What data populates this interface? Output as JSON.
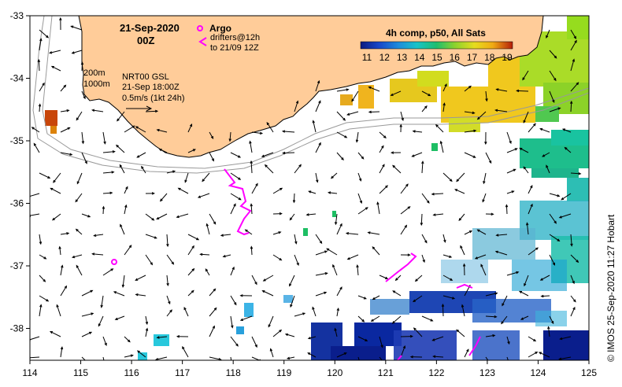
{
  "map": {
    "date_line": "21-Sep-2020",
    "time_line": "00Z",
    "argo_label": "Argo",
    "drifters_line1": "drifters@12h",
    "drifters_line2": "to 21/09 12Z",
    "isobath_200": "200m",
    "isobath_1000": "1000m",
    "current_line1": "NRT00 GSL",
    "current_line2": "21-Sep 18:00Z",
    "current_line3": "0.5m/s (1kt 24h)",
    "colorbar_title": "4h comp, p50, All Sats",
    "colorbar_ticks": [
      "11",
      "12",
      "13",
      "14",
      "15",
      "16",
      "17",
      "18",
      "19"
    ],
    "credit": "© IMOS 25-Sep-2020 11:27 Hobart",
    "lon_ticks": [
      "114",
      "115",
      "116",
      "117",
      "118",
      "119",
      "120",
      "121",
      "122",
      "123",
      "124",
      "125"
    ],
    "lat_ticks": [
      "-33",
      "-34",
      "-35",
      "-36",
      "-37",
      "-38"
    ]
  },
  "colors": {
    "land": "#ffcc99",
    "argo": "#ff00ff",
    "drifter": "#ff00ff",
    "isobath": "#999999",
    "sst_scale": [
      "#0a1a80",
      "#1746c8",
      "#1e8cdc",
      "#19c3c8",
      "#1ebe6e",
      "#8cd22d",
      "#e6dc1e",
      "#f0aa14",
      "#dc5a0f",
      "#b41e0a"
    ]
  }
}
